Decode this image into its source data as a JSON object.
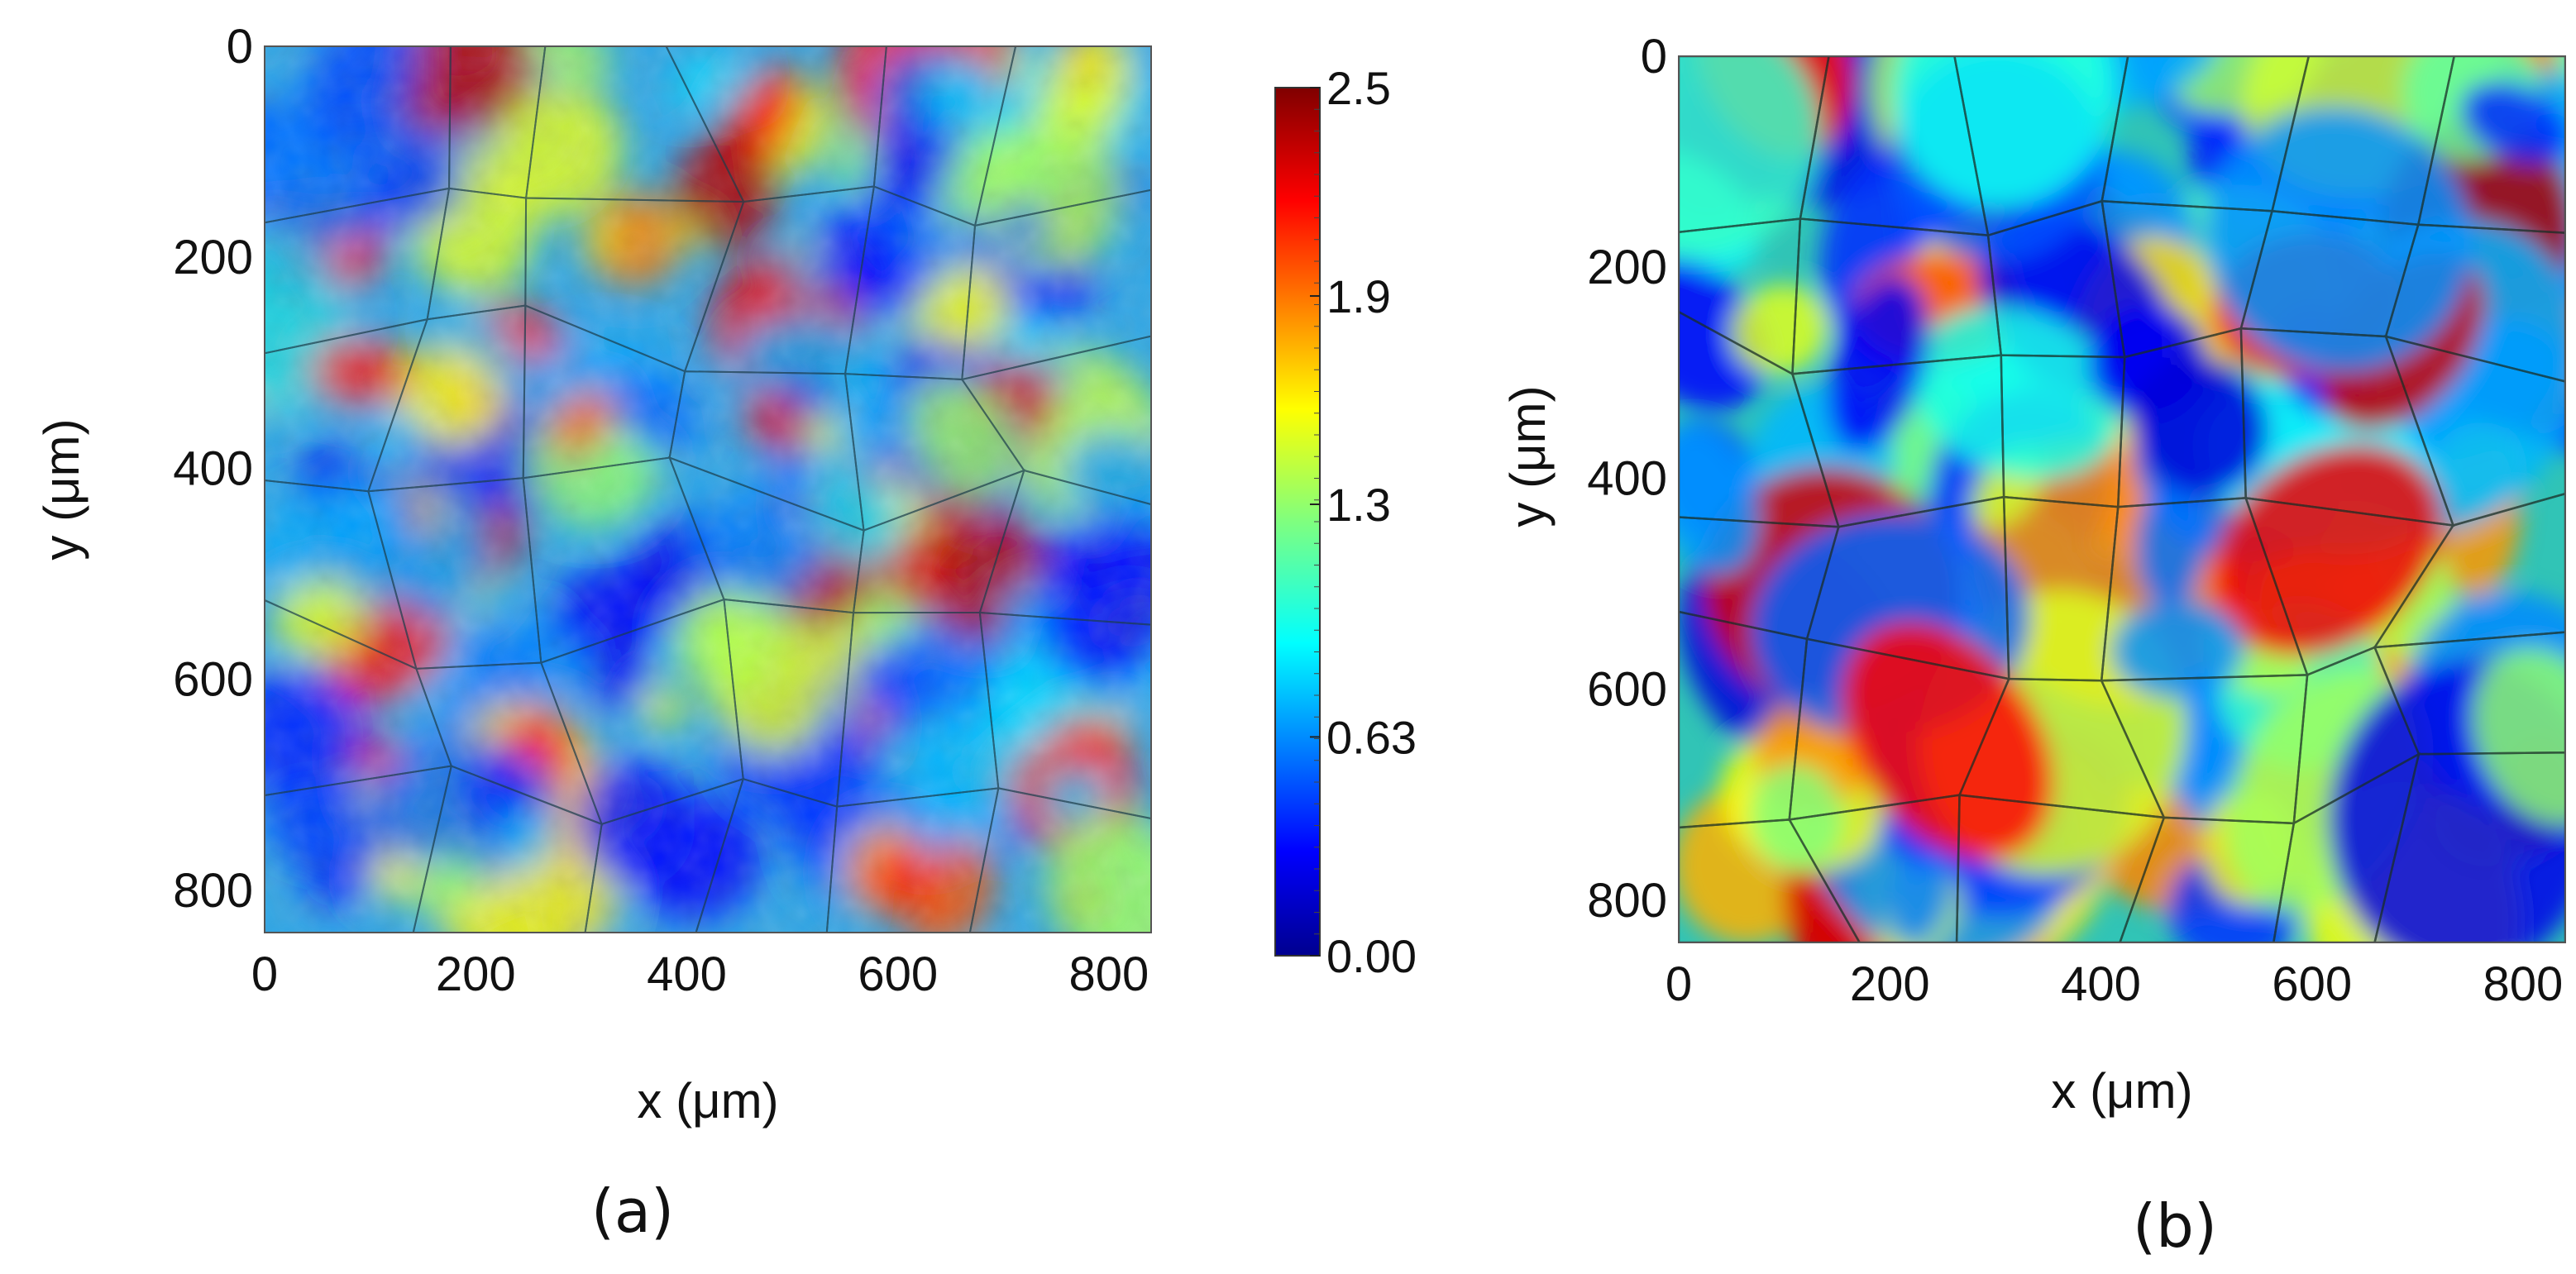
{
  "chart_data": [
    {
      "type": "heatmap",
      "panel_label": "(a)",
      "xlabel": "x (μm)",
      "ylabel": "y (μm)",
      "xlim": [
        0,
        840
      ],
      "ylim": [
        840,
        0
      ],
      "x_ticks": [
        "0",
        "200",
        "400",
        "600",
        "800"
      ],
      "y_ticks": [
        "0",
        "200",
        "400",
        "600",
        "800"
      ],
      "texture": "fine-speckled field with grain boundaries",
      "colorbar": {
        "min": 0.0,
        "max": 2.5,
        "ticks": [
          "2.5",
          "1.9",
          "1.3",
          "0.63",
          "0.00"
        ],
        "colormap": "jet"
      }
    },
    {
      "type": "heatmap",
      "panel_label": "(b)",
      "xlabel": "x (μm)",
      "ylabel": "y (μm)",
      "xlim": [
        0,
        840
      ],
      "ylim": [
        840,
        0
      ],
      "x_ticks": [
        "0",
        "200",
        "400",
        "600",
        "800"
      ],
      "y_ticks": [
        "0",
        "200",
        "400",
        "600",
        "800"
      ],
      "texture": "smooth per-grain field with grain boundaries"
    }
  ]
}
